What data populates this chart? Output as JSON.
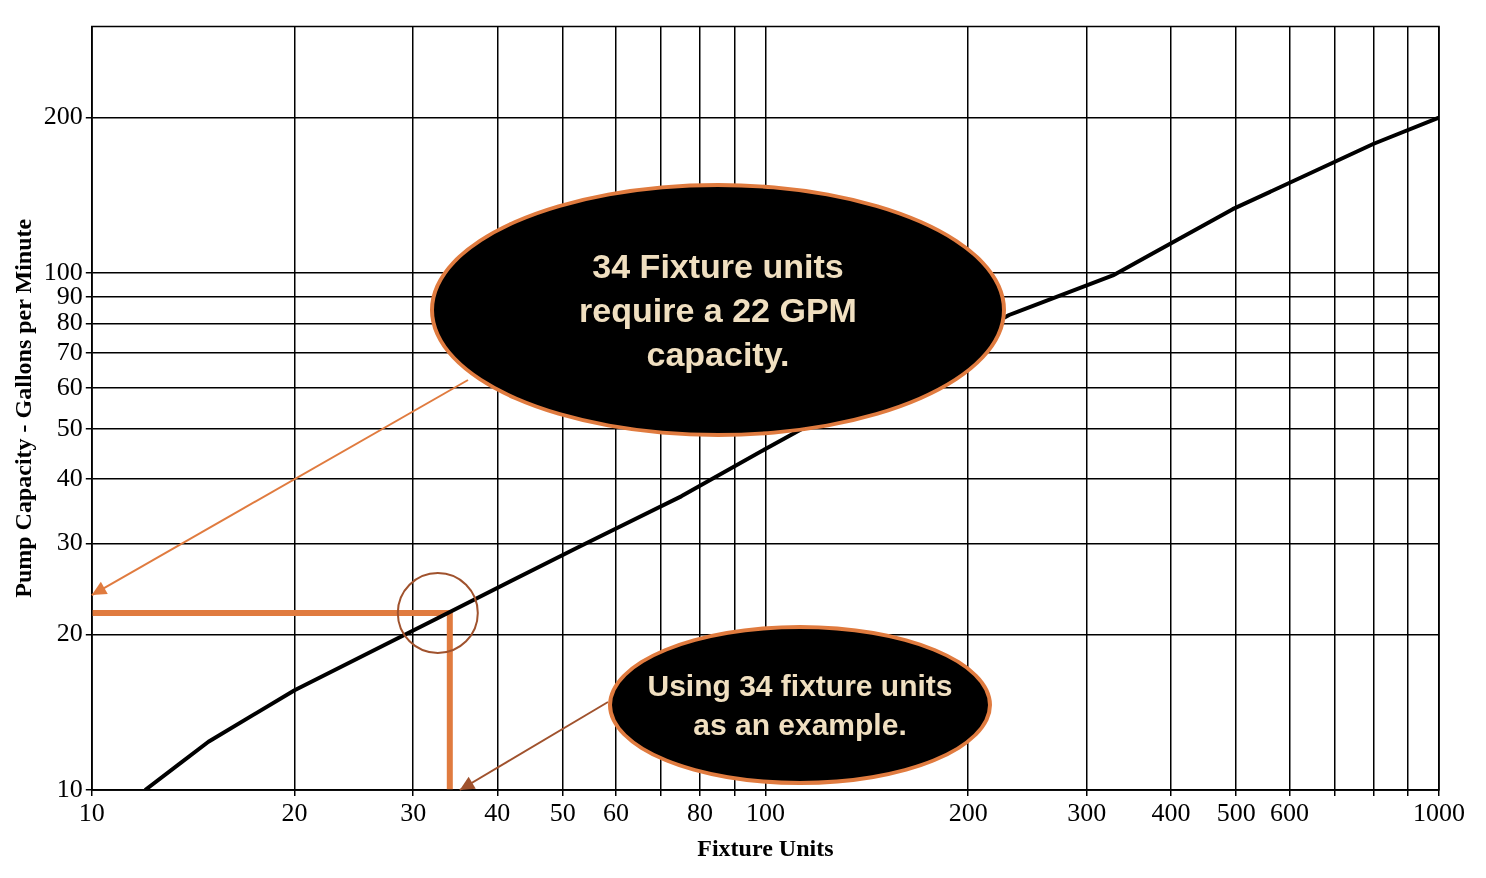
{
  "chart_data": {
    "type": "line",
    "xlabel": "Fixture Units",
    "ylabel": "Pump Capacity - Gallons per Minute",
    "log": "xy",
    "grid": true,
    "legend": false,
    "xlim": [
      10,
      1000
    ],
    "ylim": [
      10,
      300
    ],
    "xticks": [
      10,
      20,
      30,
      40,
      50,
      60,
      {
        "value": 70,
        "label": null
      },
      80,
      {
        "value": 90,
        "label": null
      },
      100,
      200,
      300,
      400,
      500,
      600,
      {
        "value": 700,
        "label": null
      },
      {
        "value": 800,
        "label": null
      },
      {
        "value": 900,
        "label": null
      },
      1000
    ],
    "yticks": [
      10,
      20,
      30,
      40,
      50,
      60,
      70,
      80,
      90,
      100,
      200
    ],
    "series": [
      {
        "color": "#000000",
        "x": [
          12,
          14.9,
          20,
          32.6,
          53,
          75,
          100,
          230,
          328,
          494,
          800,
          1000
        ],
        "values": [
          10,
          12.4,
          15.6,
          21.5,
          29.6,
          37,
          45.7,
          83,
          99,
          133,
          178,
          200
        ]
      },
      {
        "color": "#e07b3f",
        "x": [
          10,
          34
        ],
        "values": [
          22,
          22
        ]
      },
      {
        "color": "#e07b3f",
        "x": [
          34,
          34
        ],
        "values": [
          22,
          10
        ]
      }
    ],
    "annotations": [
      "34 Fixture units require a 22 GPM capacity.",
      "Using 34 fixture units as an example."
    ]
  }
}
